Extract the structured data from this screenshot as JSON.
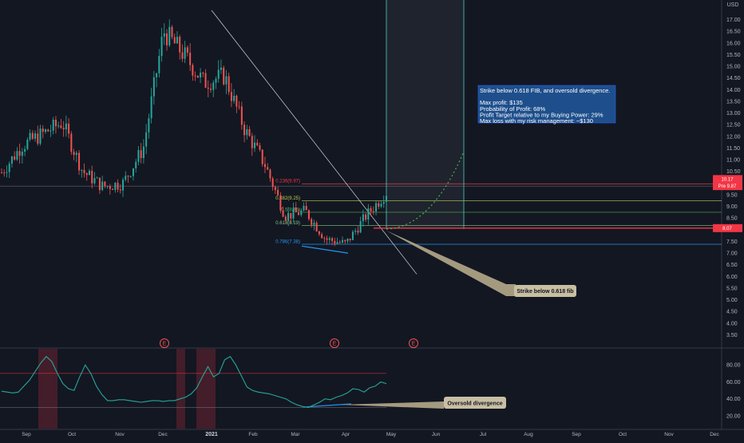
{
  "chart_data": [
    {
      "type": "candlestick",
      "title": "",
      "xlabel": "",
      "ylabel": "",
      "currency": "USD",
      "ylim": [
        3.0,
        17.6
      ],
      "y_ticks": [
        "3.50",
        "4.00",
        "4.50",
        "5.00",
        "5.50",
        "6.00",
        "6.50",
        "7.00",
        "7.50",
        "8.00",
        "8.50",
        "9.00",
        "9.50",
        "10.00",
        "10.50",
        "11.00",
        "11.50",
        "12.00",
        "12.50",
        "13.00",
        "13.50",
        "14.00",
        "14.50",
        "15.00",
        "15.50",
        "16.00",
        "16.50",
        "17.00"
      ],
      "x_ticks": [
        "Sep",
        "Oct",
        "Nov",
        "Dec",
        "2021",
        "Feb",
        "Mar",
        "Apr",
        "May",
        "Jun",
        "Jul",
        "Aug",
        "Sep",
        "Oct",
        "Nov",
        "Dec"
      ],
      "grid": false,
      "price_tags": [
        {
          "label": "10.17",
          "value": 10.17,
          "color": "#f23645"
        },
        {
          "label": "Pre 9.87",
          "value": 9.87,
          "color": "#f23645"
        },
        {
          "label": "8.07",
          "value": 8.07,
          "color": "#f23645"
        }
      ],
      "fib_levels": [
        {
          "label": "0.236(9.97)",
          "value": 9.97,
          "color": "#f23645"
        },
        {
          "label": "0.382(9.25)",
          "value": 9.25,
          "color": "#b5d14a"
        },
        {
          "label": "0.5(8.75)",
          "value": 8.75,
          "color": "#4caf50"
        },
        {
          "label": "0.618(8.19)",
          "value": 8.19,
          "color": "#81c784"
        },
        {
          "label": "0.786(7.38)",
          "value": 7.38,
          "color": "#2196f3"
        }
      ],
      "annotation_box": {
        "lines": [
          "Strike below 0.618 FIB, and oversold divergence.",
          "",
          "Max profit: $135",
          "Probability of Profit: 68%",
          "Profit Target relative to my Buying Power: 29%",
          "Max loss with my risk management:  ~$130"
        ]
      },
      "callout": "Strike below 0.618 fib",
      "earnings_markers": [
        "E",
        "E",
        "E"
      ],
      "ohlc_approx": [
        {
          "period": "Sep-early",
          "close": 10.45
        },
        {
          "period": "Sep-mid",
          "close": 11.6
        },
        {
          "period": "Sep-late",
          "close": 12.1
        },
        {
          "period": "Oct-early",
          "close": 12.6
        },
        {
          "period": "Oct-mid",
          "close": 10.5
        },
        {
          "period": "Nov",
          "close": 9.85
        },
        {
          "period": "Dec-early",
          "close": 10.0
        },
        {
          "period": "Dec-mid",
          "close": 11.5
        },
        {
          "period": "Dec-late",
          "close": 16.5
        },
        {
          "period": "Jan-early",
          "close": 15.5
        },
        {
          "period": "Jan-mid",
          "close": 14.3
        },
        {
          "period": "Feb-early",
          "close": 14.6
        },
        {
          "period": "Feb-mid",
          "close": 12.3
        },
        {
          "period": "Feb-late",
          "close": 10.8
        },
        {
          "period": "Mar-early",
          "close": 8.6
        },
        {
          "period": "Mar-mid",
          "close": 8.8
        },
        {
          "period": "Mar-late",
          "close": 7.6
        },
        {
          "period": "Apr-early",
          "close": 7.4
        },
        {
          "period": "Apr-mid",
          "close": 8.6
        },
        {
          "period": "Apr-late",
          "close": 9.6
        }
      ]
    },
    {
      "type": "line",
      "title": "",
      "series": [
        {
          "values": [
            49,
            48,
            47,
            48,
            55,
            62,
            72,
            82,
            90,
            84,
            70,
            58,
            52,
            50,
            66,
            80,
            70,
            55,
            45,
            38,
            38,
            39,
            39,
            38,
            37,
            36,
            37,
            38,
            38,
            37,
            38,
            38,
            40,
            42,
            46,
            53,
            66,
            78,
            66,
            70,
            86,
            90,
            80,
            67,
            54,
            50,
            48,
            47,
            46,
            44,
            42,
            40,
            36,
            33,
            31,
            30,
            33,
            36,
            40,
            39,
            42,
            44,
            47,
            52,
            51,
            48,
            53,
            55,
            60,
            58
          ]
        }
      ],
      "ylim": [
        10,
        92
      ],
      "y_ticks": [
        "20.00",
        "40.00",
        "60.00",
        "80.00"
      ],
      "overbought": 70,
      "oversold": 30,
      "callout": "Oversold divergence"
    }
  ]
}
